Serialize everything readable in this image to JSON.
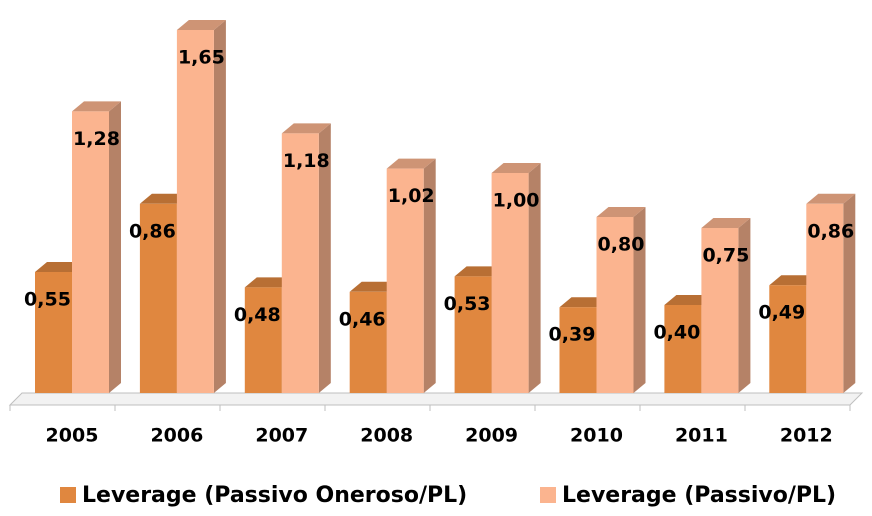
{
  "chart_data": {
    "type": "bar3d",
    "categories": [
      "2005",
      "2006",
      "2007",
      "2008",
      "2009",
      "2010",
      "2011",
      "2012"
    ],
    "series": [
      {
        "name": "Leverage (Passivo Oneroso/PL)",
        "color": "#e0873f",
        "values": [
          0.55,
          0.86,
          0.48,
          0.46,
          0.53,
          0.39,
          0.4,
          0.49
        ],
        "value_labels": [
          "0,55",
          "0,86",
          "0,48",
          "0,46",
          "0,53",
          "0,39",
          "0,40",
          "0,49"
        ]
      },
      {
        "name": "Leverage (Passivo/PL)",
        "color": "#fbb48f",
        "values": [
          1.28,
          1.65,
          1.18,
          1.02,
          1.0,
          0.8,
          0.75,
          0.86
        ],
        "value_labels": [
          "1,28",
          "1,65",
          "1,18",
          "1,02",
          "1,00",
          "0,80",
          "0,75",
          "0,86"
        ]
      }
    ]
  }
}
